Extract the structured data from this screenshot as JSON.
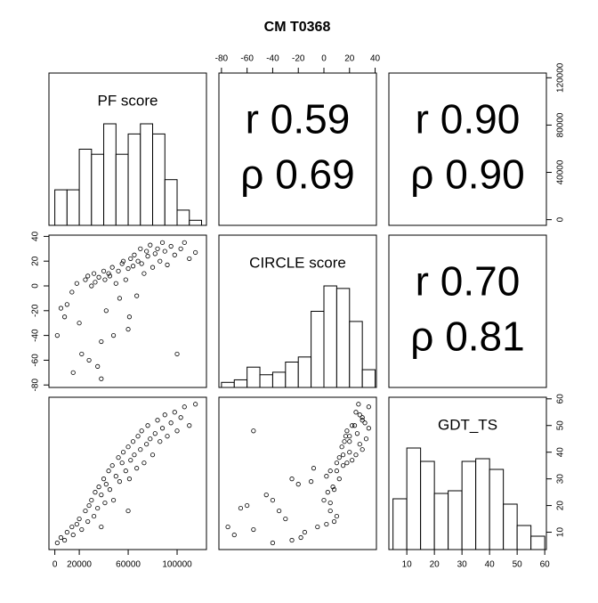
{
  "chart_data": {
    "type": "pairs",
    "title": "CM T0368",
    "variables": [
      {
        "name": "PF score",
        "values": [
          2000,
          5000,
          8000,
          10000,
          14000,
          18000,
          20000,
          22000,
          25000,
          27000,
          28000,
          30000,
          32000,
          33000,
          35000,
          36000,
          38000,
          40000,
          41000,
          42000,
          44000,
          45000,
          47000,
          48000,
          50000,
          52000,
          53000,
          55000,
          56000,
          58000,
          60000,
          61000,
          62000,
          64000,
          65000,
          67000,
          68000,
          70000,
          71000,
          73000,
          75000,
          76000,
          78000,
          80000,
          82000,
          84000,
          86000,
          88000,
          90000,
          92000,
          95000,
          98000,
          100000,
          103000,
          106000,
          110000,
          115000,
          15000,
          38000,
          60000
        ],
        "lim": [
          -4800,
          124000
        ],
        "ticks": [
          0,
          20000,
          60000,
          100000
        ],
        "ticks_vertical": [
          0,
          40000,
          80000,
          120000
        ],
        "hist_bins": [
          0,
          10000,
          20000,
          30000,
          40000,
          50000,
          60000,
          70000,
          80000,
          90000,
          100000,
          110000,
          120000
        ],
        "hist_counts": [
          7,
          7,
          15,
          14,
          20,
          14,
          18,
          20,
          18,
          9,
          3,
          1
        ]
      },
      {
        "name": "CIRCLE score",
        "values": [
          -40,
          -18,
          -25,
          -15,
          -5,
          2,
          -30,
          -55,
          5,
          8,
          -60,
          0,
          10,
          3,
          -65,
          7,
          -45,
          12,
          5,
          -20,
          10,
          8,
          15,
          -40,
          2,
          12,
          -10,
          18,
          20,
          5,
          14,
          -25,
          22,
          16,
          25,
          -8,
          20,
          30,
          18,
          10,
          28,
          24,
          33,
          15,
          26,
          30,
          20,
          35,
          28,
          17,
          32,
          25,
          -55,
          30,
          35,
          22,
          27,
          -70,
          -75,
          -35
        ],
        "lim": [
          -82,
          41
        ],
        "ticks": [
          -80,
          -60,
          -40,
          -20,
          0,
          20,
          40
        ],
        "ticks_vertical": [
          -80,
          -60,
          -40,
          -20,
          0,
          20,
          40
        ],
        "hist_bins": [
          -80,
          -70,
          -60,
          -50,
          -40,
          -30,
          -20,
          -10,
          0,
          10,
          20,
          30,
          40
        ],
        "hist_counts": [
          2,
          3,
          8,
          5,
          6,
          10,
          12,
          30,
          40,
          39,
          26,
          7
        ]
      },
      {
        "name": "GDT_TS",
        "values": [
          6,
          8,
          7,
          10,
          12,
          13,
          15,
          11,
          18,
          14,
          20,
          22,
          16,
          25,
          19,
          27,
          24,
          30,
          21,
          28,
          33,
          26,
          35,
          22,
          31,
          38,
          29,
          36,
          40,
          33,
          42,
          30,
          37,
          44,
          39,
          34,
          46,
          41,
          48,
          36,
          43,
          50,
          45,
          39,
          47,
          52,
          44,
          49,
          54,
          46,
          51,
          55,
          48,
          53,
          57,
          50,
          58,
          9,
          12,
          18
        ],
        "lim": [
          3.5,
          60.6
        ],
        "ticks": [
          10,
          20,
          30,
          40,
          50,
          60
        ],
        "ticks_vertical": [
          10,
          20,
          30,
          40,
          50,
          60
        ],
        "hist_bins": [
          5,
          10,
          15,
          20,
          25,
          30,
          35,
          40,
          45,
          50,
          55,
          60
        ],
        "hist_counts": [
          19,
          38,
          33,
          21,
          22,
          33,
          34,
          30,
          17,
          9,
          5
        ]
      }
    ],
    "correlations": [
      {
        "r": {
          "value": 0.59,
          "label": "r 0.59"
        },
        "rho": {
          "value": 0.69,
          "label": "ρ 0.69"
        }
      },
      {
        "r": {
          "value": 0.9,
          "label": "r 0.90"
        },
        "rho": {
          "value": 0.9,
          "label": "ρ 0.90"
        }
      },
      {
        "r": {
          "value": 0.7,
          "label": "r 0.70"
        },
        "rho": {
          "value": 0.81,
          "label": "ρ 0.81"
        }
      }
    ]
  }
}
